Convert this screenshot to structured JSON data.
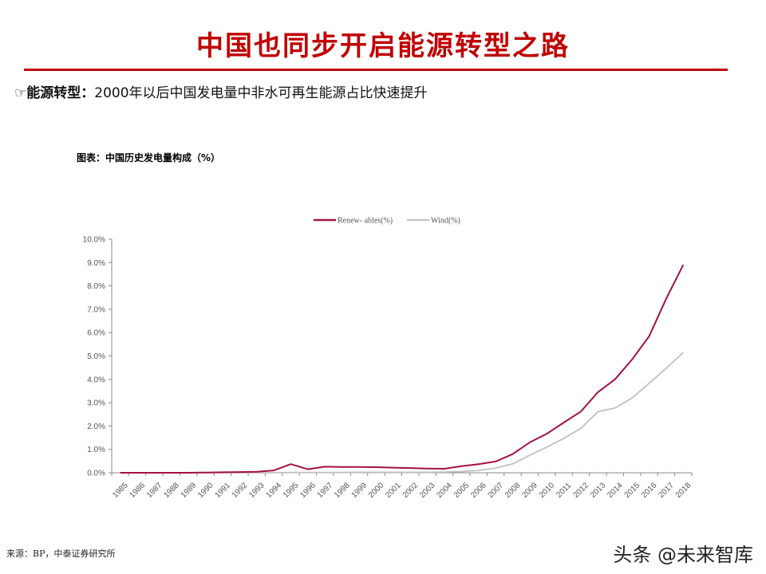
{
  "page": {
    "title": "中国也同步开启能源转型之路",
    "subtitle_icon": "pointing-hand-icon",
    "subtitle_bold": "能源转型：",
    "subtitle_text": "2000年以后中国发电量中非水可再生能源占比快速提升",
    "chart_caption": "图表：中国历史发电量构成（%）",
    "source": "来源：BP，中泰证券研究所",
    "watermark": "头条 @未来智库"
  },
  "colors": {
    "title": "#c00000",
    "renewables": "#a3123f",
    "wind": "#c0c0c0"
  },
  "chart_data": {
    "type": "line",
    "title": "中国历史发电量构成（%）",
    "xlabel": "",
    "ylabel": "",
    "ylim": [
      0,
      10
    ],
    "y_ticks": [
      "0.0%",
      "1.0%",
      "2.0%",
      "3.0%",
      "4.0%",
      "5.0%",
      "6.0%",
      "7.0%",
      "8.0%",
      "9.0%",
      "10.0%"
    ],
    "grid": false,
    "legend_position": "top",
    "categories": [
      "1985",
      "1986",
      "1987",
      "1988",
      "1989",
      "1990",
      "1991",
      "1992",
      "1993",
      "1994",
      "1995",
      "1996",
      "1997",
      "1998",
      "1999",
      "2000",
      "2001",
      "2002",
      "2003",
      "2004",
      "2005",
      "2006",
      "2007",
      "2008",
      "2009",
      "2010",
      "2011",
      "2012",
      "2013",
      "2014",
      "2015",
      "2016",
      "2017",
      "2018"
    ],
    "series": [
      {
        "name": "Renew- ables(%)",
        "values": [
          0.0,
          0.0,
          0.0,
          0.0,
          0.0,
          0.01,
          0.02,
          0.03,
          0.04,
          0.1,
          0.37,
          0.15,
          0.26,
          0.25,
          0.25,
          0.24,
          0.22,
          0.2,
          0.18,
          0.17,
          0.28,
          0.37,
          0.48,
          0.8,
          1.3,
          1.67,
          2.15,
          2.62,
          3.45,
          4.0,
          4.85,
          5.84,
          7.45,
          8.9
        ]
      },
      {
        "name": "Wind(%)",
        "values": [
          0.0,
          0.0,
          0.0,
          0.0,
          0.0,
          0.0,
          0.0,
          0.0,
          0.0,
          0.0,
          0.01,
          0.01,
          0.01,
          0.01,
          0.02,
          0.02,
          0.02,
          0.02,
          0.02,
          0.03,
          0.05,
          0.1,
          0.2,
          0.38,
          0.75,
          1.1,
          1.47,
          1.9,
          2.62,
          2.77,
          3.2,
          3.83,
          4.47,
          5.15
        ]
      }
    ]
  }
}
